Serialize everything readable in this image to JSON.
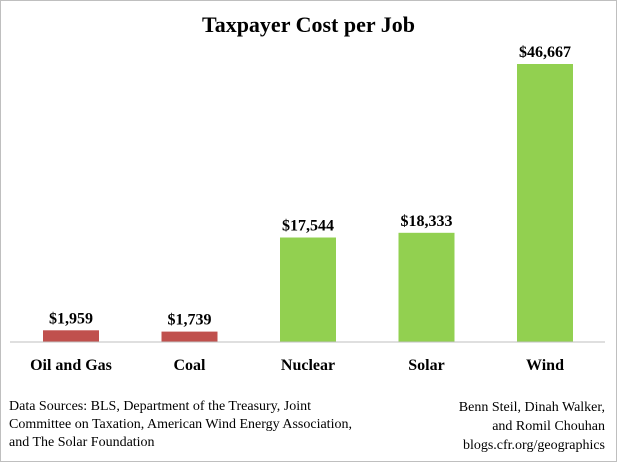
{
  "chart_data": {
    "type": "bar",
    "title": "Taxpayer Cost per Job",
    "categories": [
      "Oil and Gas",
      "Coal",
      "Nuclear",
      "Solar",
      "Wind"
    ],
    "values": [
      1959,
      1739,
      17544,
      18333,
      46667
    ],
    "data_labels": [
      "$1,959",
      "$1,739",
      "$17,544",
      "$18,333",
      "$46,667"
    ],
    "bar_colors": [
      "#c0504d",
      "#c0504d",
      "#92d050",
      "#92d050",
      "#92d050"
    ],
    "ylim": [
      0,
      50000
    ],
    "grid": false,
    "xlabel": "",
    "ylabel": ""
  },
  "footer": {
    "sources": "Data Sources: BLS, Department of the  Treasury, Joint Committee on Taxation, American Wind Energy Association, and The Solar Foundation",
    "authors_line1": "Benn Steil, Dinah Walker,",
    "authors_line2": "and Romil Chouhan",
    "authors_line3": "blogs.cfr.org/geographics"
  }
}
